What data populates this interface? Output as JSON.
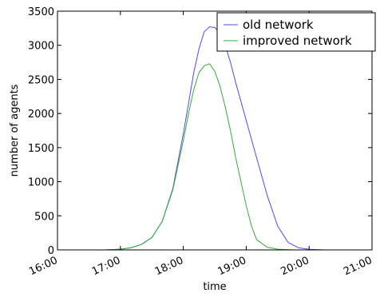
{
  "chart_data": {
    "type": "line",
    "xlabel": "time",
    "ylabel": "number of agents",
    "xlim": [
      "16:00",
      "21:00"
    ],
    "ylim": [
      0,
      3500
    ],
    "x_ticks": [
      "16:00",
      "17:00",
      "18:00",
      "19:00",
      "20:00",
      "21:00"
    ],
    "y_ticks": [
      0,
      500,
      1000,
      1500,
      2000,
      2500,
      3000,
      3500
    ],
    "grid": false,
    "legend_position": "top-right",
    "series": [
      {
        "name": "old network",
        "color": "#4c4cf0",
        "points": [
          [
            "16:00",
            0
          ],
          [
            "16:45",
            0
          ],
          [
            "17:00",
            10
          ],
          [
            "17:10",
            30
          ],
          [
            "17:20",
            80
          ],
          [
            "17:30",
            180
          ],
          [
            "17:40",
            420
          ],
          [
            "17:50",
            900
          ],
          [
            "18:00",
            1700
          ],
          [
            "18:05",
            2150
          ],
          [
            "18:10",
            2600
          ],
          [
            "18:15",
            2950
          ],
          [
            "18:20",
            3200
          ],
          [
            "18:25",
            3270
          ],
          [
            "18:30",
            3260
          ],
          [
            "18:35",
            3180
          ],
          [
            "18:40",
            3000
          ],
          [
            "18:45",
            2750
          ],
          [
            "18:50",
            2450
          ],
          [
            "19:00",
            1900
          ],
          [
            "19:10",
            1350
          ],
          [
            "19:20",
            800
          ],
          [
            "19:30",
            350
          ],
          [
            "19:40",
            110
          ],
          [
            "19:50",
            30
          ],
          [
            "20:00",
            8
          ],
          [
            "20:15",
            0
          ],
          [
            "21:00",
            0
          ]
        ]
      },
      {
        "name": "improved network",
        "color": "#3aa83a",
        "points": [
          [
            "16:00",
            0
          ],
          [
            "16:45",
            0
          ],
          [
            "17:00",
            10
          ],
          [
            "17:10",
            30
          ],
          [
            "17:20",
            80
          ],
          [
            "17:30",
            180
          ],
          [
            "17:40",
            420
          ],
          [
            "17:50",
            880
          ],
          [
            "18:00",
            1600
          ],
          [
            "18:05",
            2000
          ],
          [
            "18:10",
            2350
          ],
          [
            "18:15",
            2600
          ],
          [
            "18:20",
            2700
          ],
          [
            "18:25",
            2730
          ],
          [
            "18:30",
            2620
          ],
          [
            "18:35",
            2400
          ],
          [
            "18:40",
            2100
          ],
          [
            "18:45",
            1750
          ],
          [
            "18:50",
            1350
          ],
          [
            "19:00",
            650
          ],
          [
            "19:05",
            350
          ],
          [
            "19:10",
            150
          ],
          [
            "19:20",
            40
          ],
          [
            "19:30",
            10
          ],
          [
            "19:45",
            0
          ],
          [
            "21:00",
            0
          ]
        ]
      }
    ]
  }
}
